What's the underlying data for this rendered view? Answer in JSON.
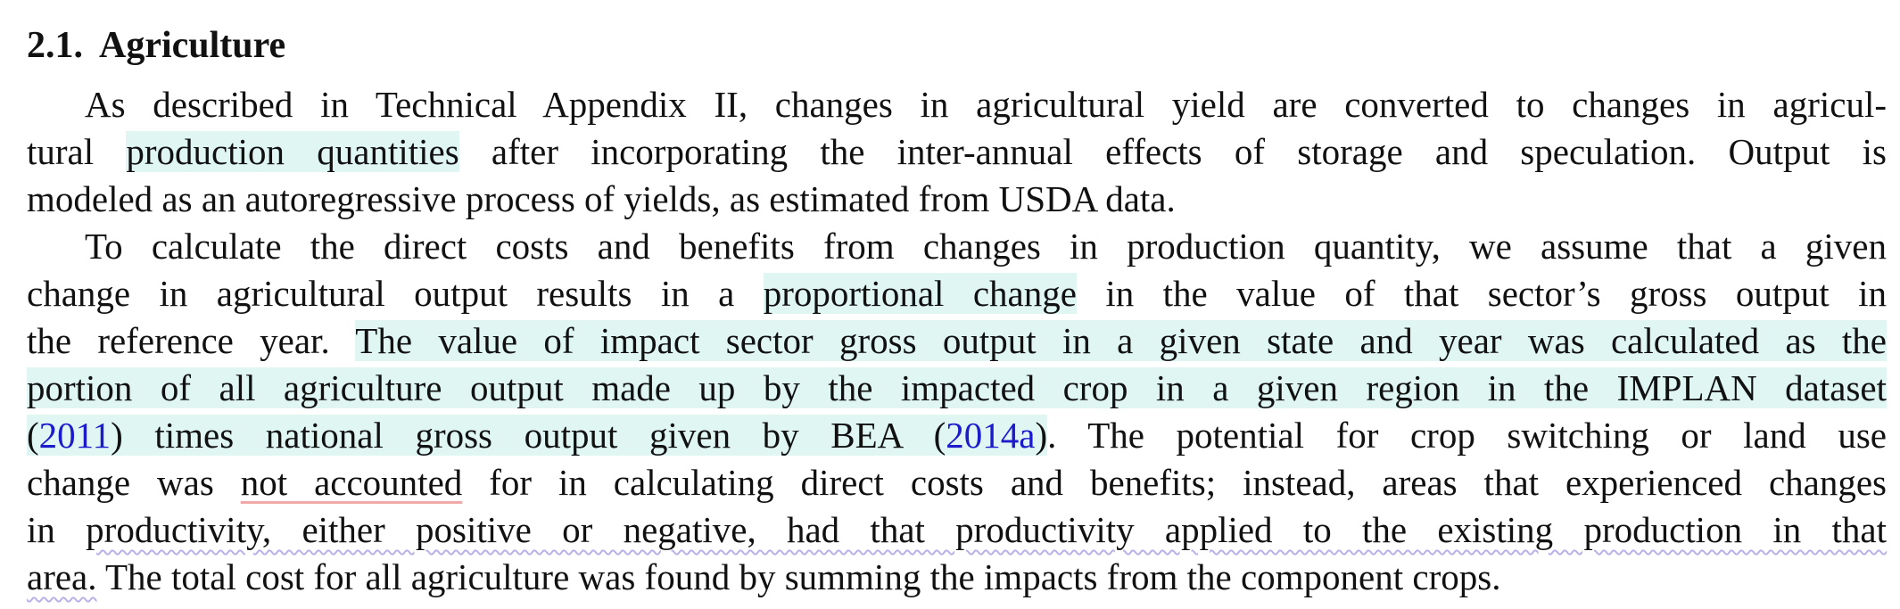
{
  "heading": {
    "number": "2.1.",
    "title": "Agriculture"
  },
  "paragraphs": [
    {
      "lines": [
        [
          "As described in Technical Appendix II, changes in agricultural yield are converted to changes in agricul-"
        ],
        [
          "tural ",
          "production quantities",
          " after incorporating the inter-annual effects of storage and speculation. Output is"
        ],
        [
          "modeled as an autoregressive process of yields, as estimated from USDA data."
        ]
      ]
    },
    {
      "lines": [
        [
          "To calculate the direct costs and benefits from changes in production quantity, we assume that a given"
        ],
        [
          "change in agricultural output results in a ",
          "proportional change",
          " in the value of that sector’s gross output in"
        ],
        [
          "the reference year. ",
          "The value of impact sector gross output in a given state and year was calculated as the"
        ],
        [
          "portion of all agriculture output made up by the impacted crop in a given region in the IMPLAN dataset"
        ],
        [
          "(",
          "2011",
          ") times national gross output given by BEA (",
          "2014a",
          ")",
          ".  The potential for crop switching or land use"
        ],
        [
          "change was ",
          "not accounted",
          " for in calculating direct costs and benefits; instead, areas that experienced changes"
        ],
        [
          "in ",
          "productivity, either positive or negative, had that productivity applied to the existing production in that"
        ],
        [
          "area.",
          " The total cost for all agriculture was found by summing the impacts from the component crops."
        ]
      ]
    }
  ]
}
